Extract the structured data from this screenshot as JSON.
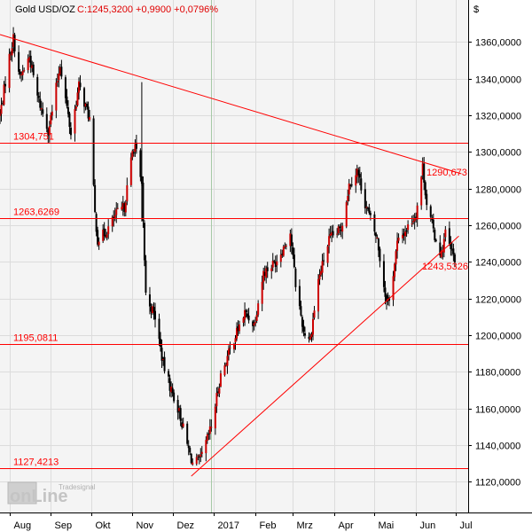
{
  "header": {
    "instrument": "Gold USD/OZ",
    "quote": "C:1245,3200 +0,9900 +0,0796%"
  },
  "currency_symbol": "$",
  "logo": {
    "brand": "onLine",
    "sub": "Tradesignal"
  },
  "colors": {
    "background": "#f4f4f4",
    "axis_bg": "#ffffff",
    "grid": "#dcdcdc",
    "candle": "#000000",
    "candle_body": "#cc0000",
    "line": "#ff0000",
    "label": "#ff0000",
    "text": "#000000",
    "marker": "#a6c9a6"
  },
  "chart_data": {
    "type": "candlestick",
    "title": "",
    "ylim": [
      1108,
      1378
    ],
    "yticks": [
      {
        "value": 1120,
        "label": "1120,0000"
      },
      {
        "value": 1140,
        "label": "1140,0000"
      },
      {
        "value": 1160,
        "label": "1160,0000"
      },
      {
        "value": 1180,
        "label": "1180,0000"
      },
      {
        "value": 1200,
        "label": "1200,0000"
      },
      {
        "value": 1220,
        "label": "1220,0000"
      },
      {
        "value": 1240,
        "label": "1240,0000"
      },
      {
        "value": 1260,
        "label": "1260,0000"
      },
      {
        "value": 1280,
        "label": "1280,0000"
      },
      {
        "value": 1300,
        "label": "1300,0000"
      },
      {
        "value": 1320,
        "label": "1320,0000"
      },
      {
        "value": 1340,
        "label": "1340,0000"
      },
      {
        "value": 1360,
        "label": "1360,0000"
      }
    ],
    "xlim": [
      "2016-07-25",
      "2017-07-10"
    ],
    "xticks": [
      {
        "date": "2016-08-01",
        "label": "Aug"
      },
      {
        "date": "2016-09-01",
        "label": "Sep"
      },
      {
        "date": "2016-10-01",
        "label": "Okt"
      },
      {
        "date": "2016-11-01",
        "label": "Nov"
      },
      {
        "date": "2016-12-01",
        "label": "Dez"
      },
      {
        "date": "2017-01-01",
        "label": "2017"
      },
      {
        "date": "2017-02-01",
        "label": "Feb"
      },
      {
        "date": "2017-03-01",
        "label": "Mrz"
      },
      {
        "date": "2017-04-01",
        "label": "Apr"
      },
      {
        "date": "2017-05-01",
        "label": "Mai"
      },
      {
        "date": "2017-06-01",
        "label": "Jun"
      },
      {
        "date": "2017-07-01",
        "label": "Jul"
      }
    ],
    "marker_date": "2016-12-30",
    "horizontal_levels": [
      {
        "value": 1304.751,
        "label": "1304,751"
      },
      {
        "value": 1263.6269,
        "label": "1263,6269"
      },
      {
        "value": 1195.0811,
        "label": "1195,0811"
      },
      {
        "value": 1127.4213,
        "label": "1127,4213"
      }
    ],
    "trendlines": [
      {
        "from": {
          "date": "2016-07-25",
          "value": 1364
        },
        "to": {
          "date": "2017-07-05",
          "value": 1288
        },
        "label": "1290,673"
      },
      {
        "from": {
          "date": "2016-12-15",
          "value": 1123
        },
        "to": {
          "date": "2017-07-03",
          "value": 1254
        },
        "label": "1243,5326"
      }
    ],
    "close_path": [
      [
        "2016-07-25",
        1320
      ],
      [
        "2016-08-01",
        1352
      ],
      [
        "2016-08-04",
        1362
      ],
      [
        "2016-08-09",
        1340
      ],
      [
        "2016-08-16",
        1352
      ],
      [
        "2016-08-22",
        1330
      ],
      [
        "2016-08-30",
        1312
      ],
      [
        "2016-09-02",
        1322
      ],
      [
        "2016-09-08",
        1348
      ],
      [
        "2016-09-16",
        1310
      ],
      [
        "2016-09-22",
        1336
      ],
      [
        "2016-09-30",
        1318
      ],
      [
        "2016-10-04",
        1266
      ],
      [
        "2016-10-06",
        1252
      ],
      [
        "2016-10-12",
        1256
      ],
      [
        "2016-10-20",
        1266
      ],
      [
        "2016-10-26",
        1270
      ],
      [
        "2016-11-01",
        1300
      ],
      [
        "2016-11-03",
        1304
      ],
      [
        "2016-11-08",
        1280
      ],
      [
        "2016-11-11",
        1222
      ],
      [
        "2016-11-18",
        1210
      ],
      [
        "2016-11-24",
        1184
      ],
      [
        "2016-11-30",
        1170
      ],
      [
        "2016-12-06",
        1158
      ],
      [
        "2016-12-12",
        1140
      ],
      [
        "2016-12-16",
        1130
      ],
      [
        "2016-12-22",
        1132
      ],
      [
        "2016-12-30",
        1150
      ],
      [
        "2017-01-06",
        1178
      ],
      [
        "2017-01-16",
        1198
      ],
      [
        "2017-01-24",
        1212
      ],
      [
        "2017-01-31",
        1206
      ],
      [
        "2017-02-07",
        1234
      ],
      [
        "2017-02-16",
        1240
      ],
      [
        "2017-02-22",
        1248
      ],
      [
        "2017-02-27",
        1256
      ],
      [
        "2017-03-03",
        1228
      ],
      [
        "2017-03-09",
        1202
      ],
      [
        "2017-03-14",
        1198
      ],
      [
        "2017-03-20",
        1230
      ],
      [
        "2017-03-28",
        1252
      ],
      [
        "2017-04-06",
        1258
      ],
      [
        "2017-04-12",
        1282
      ],
      [
        "2017-04-18",
        1290
      ],
      [
        "2017-04-24",
        1272
      ],
      [
        "2017-05-03",
        1252
      ],
      [
        "2017-05-09",
        1222
      ],
      [
        "2017-05-12",
        1218
      ],
      [
        "2017-05-18",
        1250
      ],
      [
        "2017-05-25",
        1258
      ],
      [
        "2017-06-01",
        1266
      ],
      [
        "2017-06-06",
        1292
      ],
      [
        "2017-06-09",
        1272
      ],
      [
        "2017-06-15",
        1254
      ],
      [
        "2017-06-20",
        1244
      ],
      [
        "2017-06-23",
        1256
      ],
      [
        "2017-06-27",
        1246
      ],
      [
        "2017-06-30",
        1242
      ]
    ]
  }
}
